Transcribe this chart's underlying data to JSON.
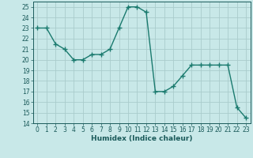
{
  "x": [
    0,
    1,
    2,
    3,
    4,
    5,
    6,
    7,
    8,
    9,
    10,
    11,
    12,
    13,
    14,
    15,
    16,
    17,
    18,
    19,
    20,
    21,
    22,
    23
  ],
  "y": [
    23.0,
    23.0,
    21.5,
    21.0,
    20.0,
    20.0,
    20.5,
    20.5,
    21.0,
    23.0,
    25.0,
    25.0,
    24.5,
    17.0,
    17.0,
    17.5,
    18.5,
    19.5,
    19.5,
    19.5,
    19.5,
    19.5,
    15.5,
    14.5
  ],
  "line_color": "#1a7a6e",
  "bg_color": "#c8e8e8",
  "grid_color": "#aacccc",
  "xlabel": "Humidex (Indice chaleur)",
  "xlim": [
    -0.5,
    23.5
  ],
  "ylim": [
    14,
    25.5
  ],
  "yticks": [
    14,
    15,
    16,
    17,
    18,
    19,
    20,
    21,
    22,
    23,
    24,
    25
  ],
  "xticks": [
    0,
    1,
    2,
    3,
    4,
    5,
    6,
    7,
    8,
    9,
    10,
    11,
    12,
    13,
    14,
    15,
    16,
    17,
    18,
    19,
    20,
    21,
    22,
    23
  ],
  "marker": "+",
  "marker_size": 4,
  "line_width": 1.0,
  "font_color": "#1a5a5a",
  "tick_fontsize": 5.5,
  "label_fontsize": 6.5
}
